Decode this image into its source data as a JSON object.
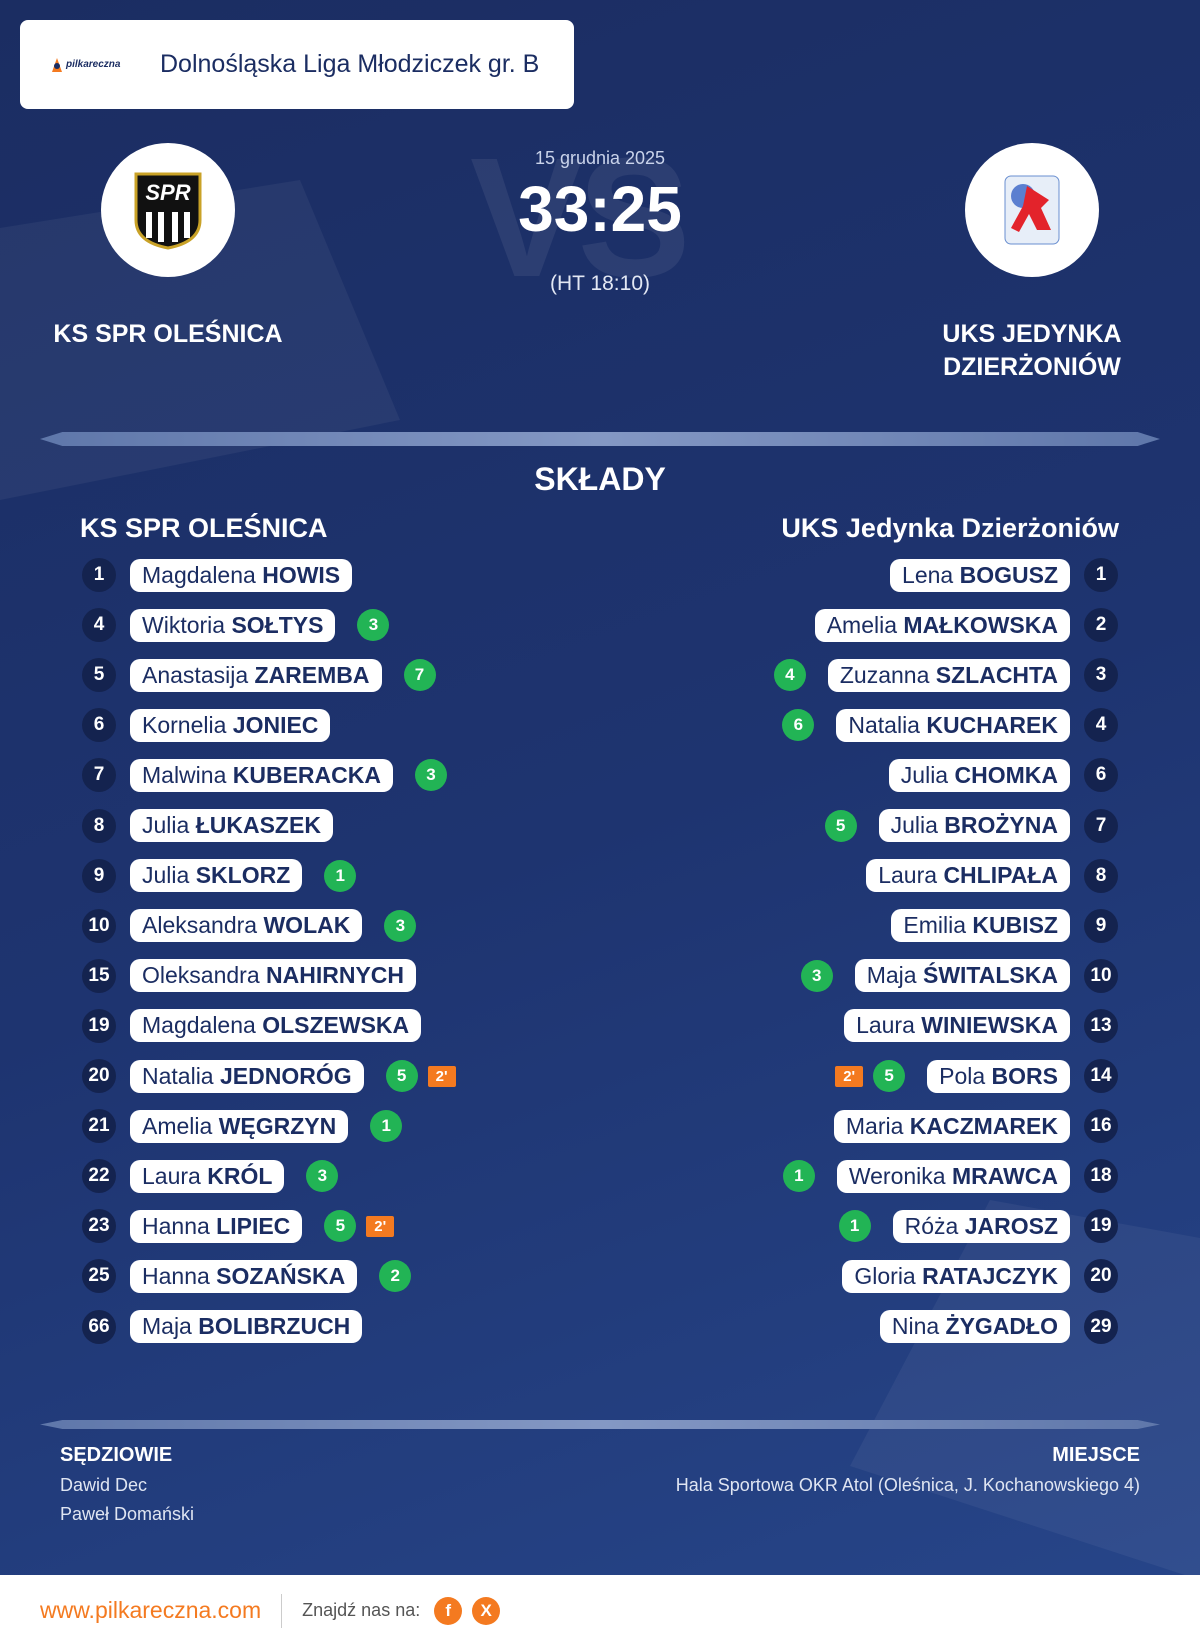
{
  "header": {
    "logo_text": "pilkareczna",
    "league": "Dolnośląska Liga Młodziczek gr. B"
  },
  "match": {
    "background_text": "VS",
    "date": "15 grudnia 2025",
    "score": "33:25",
    "half_time": "(HT 18:10)",
    "home_logo_text": "SPR",
    "home_team": "KS SPR OLEŚNICA",
    "away_team": [
      "UKS JEDYNKA",
      "DZIERŻONIÓW"
    ]
  },
  "lineups": {
    "title": "SKŁADY",
    "home": {
      "name": "KS SPR OLEŚNICA",
      "players": [
        {
          "number": "1",
          "first": "Magdalena",
          "last": "HOWIS"
        },
        {
          "number": "4",
          "first": "Wiktoria",
          "last": "SOŁTYS",
          "goals": "3"
        },
        {
          "number": "5",
          "first": "Anastasija",
          "last": "ZAREMBA",
          "goals": "7"
        },
        {
          "number": "6",
          "first": "Kornelia",
          "last": "JONIEC"
        },
        {
          "number": "7",
          "first": "Malwina",
          "last": "KUBERACKA",
          "goals": "3"
        },
        {
          "number": "8",
          "first": "Julia",
          "last": "ŁUKASZEK"
        },
        {
          "number": "9",
          "first": "Julia",
          "last": "SKLORZ",
          "goals": "1"
        },
        {
          "number": "10",
          "first": "Aleksandra",
          "last": "WOLAK",
          "goals": "3"
        },
        {
          "number": "15",
          "first": "Oleksandra",
          "last": "NAHIRNYCH"
        },
        {
          "number": "19",
          "first": "Magdalena",
          "last": "OLSZEWSKA"
        },
        {
          "number": "20",
          "first": "Natalia",
          "last": "JEDNORÓG",
          "goals": "5",
          "penalty": "2'"
        },
        {
          "number": "21",
          "first": "Amelia",
          "last": "WĘGRZYN",
          "goals": "1"
        },
        {
          "number": "22",
          "first": "Laura",
          "last": "KRÓL",
          "goals": "3"
        },
        {
          "number": "23",
          "first": "Hanna",
          "last": "LIPIEC",
          "goals": "5",
          "penalty": "2'"
        },
        {
          "number": "25",
          "first": "Hanna",
          "last": "SOZAŃSKA",
          "goals": "2"
        },
        {
          "number": "66",
          "first": "Maja",
          "last": "BOLIBRZUCH"
        }
      ]
    },
    "away": {
      "name": "UKS Jedynka Dzierżoniów",
      "players": [
        {
          "number": "1",
          "first": "Lena",
          "last": "BOGUSZ"
        },
        {
          "number": "2",
          "first": "Amelia",
          "last": "MAŁKOWSKA"
        },
        {
          "number": "3",
          "first": "Zuzanna",
          "last": "SZLACHTA",
          "goals": "4"
        },
        {
          "number": "4",
          "first": "Natalia",
          "last": "KUCHAREK",
          "goals": "6"
        },
        {
          "number": "6",
          "first": "Julia",
          "last": "CHOMKA"
        },
        {
          "number": "7",
          "first": "Julia",
          "last": "BROŻYNA",
          "goals": "5"
        },
        {
          "number": "8",
          "first": "Laura",
          "last": "CHLIPAŁA"
        },
        {
          "number": "9",
          "first": "Emilia",
          "last": "KUBISZ"
        },
        {
          "number": "10",
          "first": "Maja",
          "last": "ŚWITALSKA",
          "goals": "3"
        },
        {
          "number": "13",
          "first": "Laura",
          "last": "WINIEWSKA"
        },
        {
          "number": "14",
          "first": "Pola",
          "last": "BORS",
          "goals": "5",
          "penalty": "2'"
        },
        {
          "number": "16",
          "first": "Maria",
          "last": "KACZMAREK"
        },
        {
          "number": "18",
          "first": "Weronika",
          "last": "MRAWCA",
          "goals": "1"
        },
        {
          "number": "19",
          "first": "Róża",
          "last": "JAROSZ",
          "goals": "1"
        },
        {
          "number": "20",
          "first": "Gloria",
          "last": "RATAJCZYK"
        },
        {
          "number": "29",
          "first": "Nina",
          "last": "ŻYGADŁO"
        }
      ]
    }
  },
  "officials": {
    "label": "SĘDZIOWIE",
    "names": [
      "Dawid Dec",
      "Paweł Domański"
    ]
  },
  "venue": {
    "label": "MIEJSCE",
    "text": "Hala Sportowa OKR Atol (Oleśnica, J. Kochanowskiego 4)"
  },
  "footer": {
    "website": "www.pilkareczna.com",
    "find_us": "Znajdź nas na:",
    "social": [
      "f",
      "X"
    ]
  }
}
